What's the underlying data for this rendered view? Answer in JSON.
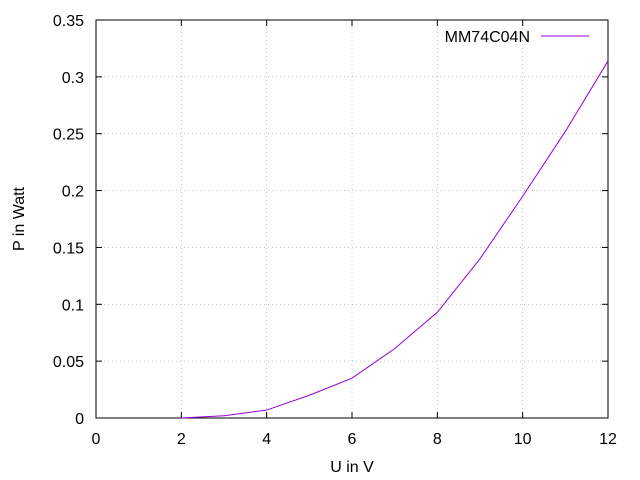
{
  "chart_data": {
    "type": "line",
    "xlabel": "U in V",
    "ylabel": "P in Watt",
    "xlim": [
      0,
      12
    ],
    "ylim": [
      0,
      0.35
    ],
    "xticks": [
      0,
      2,
      4,
      6,
      8,
      10,
      12
    ],
    "yticks": [
      0,
      0.05,
      0.1,
      0.15,
      0.2,
      0.25,
      0.3,
      0.35
    ],
    "xtick_labels": [
      "0",
      "2",
      "4",
      "6",
      "8",
      "10",
      "12"
    ],
    "ytick_labels": [
      "0",
      "0.05",
      "0.1",
      "0.15",
      "0.2",
      "0.25",
      "0.3",
      "0.35"
    ],
    "grid": true,
    "legend_position": "top-right",
    "series": [
      {
        "name": "MM74C04N",
        "color": "#9400d3",
        "x": [
          2,
          3,
          4,
          5,
          6,
          7,
          8,
          9,
          10,
          11,
          12
        ],
        "y": [
          0.0,
          0.002,
          0.007,
          0.02,
          0.035,
          0.061,
          0.093,
          0.14,
          0.195,
          0.252,
          0.314
        ]
      }
    ]
  }
}
